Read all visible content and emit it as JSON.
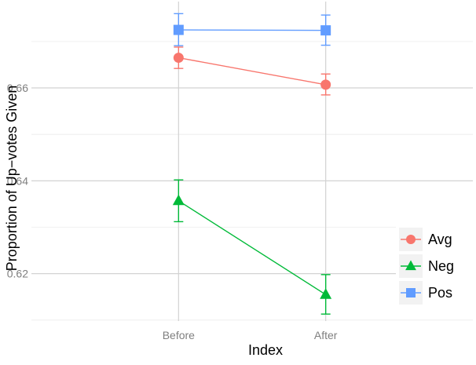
{
  "chart_data": {
    "type": "line",
    "xlabel": "Index",
    "ylabel": "Proportion of Up−votes Given",
    "categories": [
      "Before",
      "After"
    ],
    "ylim": [
      0.6098,
      0.6786
    ],
    "yticks": [
      0.62,
      0.64,
      0.66
    ],
    "ytick_labels": [
      "0.62",
      "0.64",
      "0.66"
    ],
    "grid": true,
    "legend_position": "bottom-right",
    "series": [
      {
        "name": "Avg",
        "color": "#F8766D",
        "marker": "circle",
        "values": [
          0.6665,
          0.6607
        ],
        "lower": [
          0.6642,
          0.6585
        ],
        "upper": [
          0.6688,
          0.663
        ]
      },
      {
        "name": "Neg",
        "color": "#00BA38",
        "marker": "triangle",
        "values": [
          0.6357,
          0.6155
        ],
        "lower": [
          0.6312,
          0.6113
        ],
        "upper": [
          0.6402,
          0.6198
        ]
      },
      {
        "name": "Pos",
        "color": "#619CFF",
        "marker": "square",
        "values": [
          0.6725,
          0.6724
        ],
        "lower": [
          0.6691,
          0.6692
        ],
        "upper": [
          0.676,
          0.6757
        ]
      }
    ]
  }
}
